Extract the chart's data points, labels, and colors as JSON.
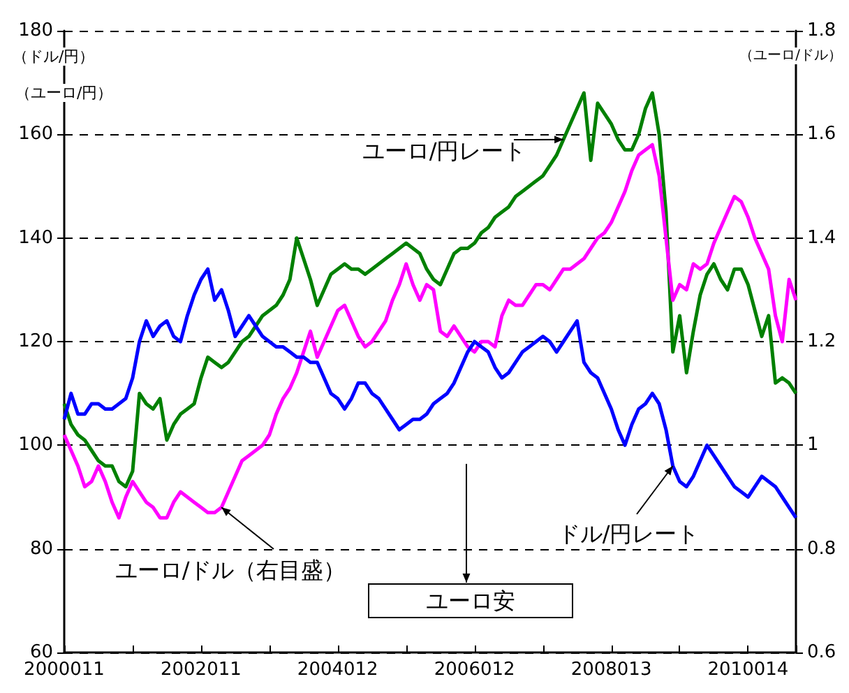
{
  "chart_data": {
    "type": "line",
    "ylabel": "（ドル/円）（ユーロ/円）",
    "y2label": "（ユーロ/ドル）",
    "categories": [
      "2000011",
      null,
      null,
      null,
      null,
      null,
      null,
      null,
      null,
      null,
      null,
      null,
      null,
      null,
      null,
      null,
      null,
      null,
      null,
      null,
      "2002011",
      null,
      null,
      null,
      null,
      null,
      null,
      null,
      null,
      null,
      null,
      null,
      null,
      null,
      null,
      null,
      null,
      null,
      null,
      null,
      "2004012",
      null,
      null,
      null,
      null,
      null,
      null,
      null,
      null,
      null,
      null,
      null,
      null,
      null,
      null,
      null,
      null,
      null,
      null,
      null,
      "2006012",
      null,
      null,
      null,
      null,
      null,
      null,
      null,
      null,
      null,
      null,
      null,
      null,
      null,
      null,
      null,
      null,
      null,
      null,
      null,
      "2008013",
      null,
      null,
      null,
      null,
      null,
      null,
      null,
      null,
      null,
      null,
      null,
      null,
      null,
      null,
      null,
      null,
      null,
      null,
      null,
      "2010014",
      null,
      null,
      null,
      null,
      null,
      null,
      null
    ],
    "ylim": [
      60,
      180
    ],
    "yticks": [
      60,
      80,
      100,
      120,
      140,
      160,
      180
    ],
    "y2lim": [
      0.6,
      1.8
    ],
    "y2ticks": [
      0.6,
      0.8,
      1,
      1.2,
      1.4,
      1.6,
      1.8
    ],
    "grid": "y",
    "legend": false,
    "marker": "none",
    "line_style": "solid",
    "annotations": [
      "ユーロ安"
    ],
    "series": [
      {
        "name": "ユーロ/円レート",
        "color": "#008000",
        "axis": "y",
        "values": [
          108,
          104,
          102,
          101,
          99,
          97,
          96,
          96,
          93,
          92,
          95,
          110,
          108,
          107,
          109,
          101,
          104,
          106,
          107,
          108,
          113,
          117,
          116,
          115,
          116,
          118,
          120,
          121,
          123,
          125,
          126,
          127,
          129,
          132,
          140,
          136,
          132,
          127,
          130,
          133,
          134,
          135,
          134,
          134,
          133,
          134,
          135,
          136,
          137,
          138,
          139,
          138,
          137,
          134,
          132,
          131,
          134,
          137,
          138,
          138,
          139,
          141,
          142,
          144,
          145,
          146,
          148,
          149,
          150,
          151,
          152,
          154,
          156,
          159,
          162,
          165,
          168,
          155,
          166,
          164,
          162,
          159,
          157,
          157,
          160,
          165,
          168,
          160,
          145,
          118,
          125,
          114,
          122,
          129,
          133,
          135,
          132,
          130,
          134,
          134,
          131,
          126,
          121,
          125,
          112,
          113,
          112,
          110
        ]
      },
      {
        "name": "ユーロ/ドル（右目盛）",
        "color": "#ff00ff",
        "axis": "y2",
        "values": [
          1.02,
          0.99,
          0.96,
          0.92,
          0.93,
          0.96,
          0.93,
          0.89,
          0.86,
          0.9,
          0.93,
          0.91,
          0.89,
          0.88,
          0.86,
          0.86,
          0.89,
          0.91,
          0.9,
          0.89,
          0.88,
          0.87,
          0.87,
          0.88,
          0.91,
          0.94,
          0.97,
          0.98,
          0.99,
          1.0,
          1.02,
          1.06,
          1.09,
          1.11,
          1.14,
          1.18,
          1.22,
          1.17,
          1.2,
          1.23,
          1.26,
          1.27,
          1.24,
          1.21,
          1.19,
          1.2,
          1.22,
          1.24,
          1.28,
          1.31,
          1.35,
          1.31,
          1.28,
          1.31,
          1.3,
          1.22,
          1.21,
          1.23,
          1.21,
          1.19,
          1.18,
          1.2,
          1.2,
          1.19,
          1.25,
          1.28,
          1.27,
          1.27,
          1.29,
          1.31,
          1.31,
          1.3,
          1.32,
          1.34,
          1.34,
          1.35,
          1.36,
          1.38,
          1.4,
          1.41,
          1.43,
          1.46,
          1.49,
          1.53,
          1.56,
          1.57,
          1.58,
          1.52,
          1.4,
          1.28,
          1.31,
          1.3,
          1.35,
          1.34,
          1.35,
          1.39,
          1.42,
          1.45,
          1.48,
          1.47,
          1.44,
          1.4,
          1.37,
          1.34,
          1.25,
          1.2,
          1.32,
          1.28
        ]
      },
      {
        "name": "ドル/円レート",
        "color": "#0000ff",
        "axis": "y",
        "values": [
          105,
          110,
          106,
          106,
          108,
          108,
          107,
          107,
          108,
          109,
          113,
          120,
          124,
          121,
          123,
          124,
          121,
          120,
          125,
          129,
          132,
          134,
          128,
          130,
          126,
          121,
          123,
          125,
          123,
          121,
          120,
          119,
          119,
          118,
          117,
          117,
          116,
          116,
          113,
          110,
          109,
          107,
          109,
          112,
          112,
          110,
          109,
          107,
          105,
          103,
          104,
          105,
          105,
          106,
          108,
          109,
          110,
          112,
          115,
          118,
          120,
          119,
          118,
          115,
          113,
          114,
          116,
          118,
          119,
          120,
          121,
          120,
          118,
          120,
          122,
          124,
          116,
          114,
          113,
          110,
          107,
          103,
          100,
          104,
          107,
          108,
          110,
          108,
          103,
          96,
          93,
          92,
          94,
          97,
          100,
          98,
          96,
          94,
          92,
          91,
          90,
          92,
          94,
          93,
          92,
          90,
          88,
          86
        ]
      }
    ]
  }
}
